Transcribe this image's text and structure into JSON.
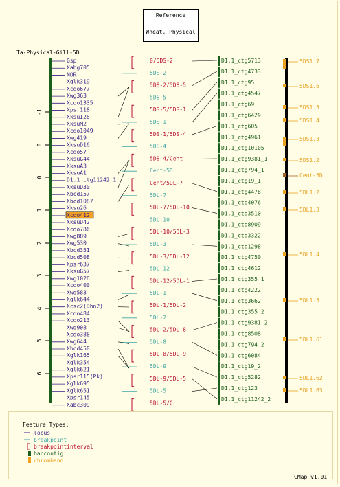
{
  "reference": {
    "line1": "Reference",
    "line2": "Wheat, Physical"
  },
  "map_title": "Ta-Physical-Gill-5D",
  "axis_ticks": [
    "-1",
    "0",
    "0",
    "1",
    "2",
    "3",
    "4",
    "5",
    "6"
  ],
  "loci": [
    "Gsp",
    "Xabg705",
    "NOR",
    "Xglk319",
    "Xcdo677",
    "Xwg363",
    "Xcdo1335",
    "Xpsr118",
    "XksuI26",
    "XksuM2",
    "Xcdo1049",
    "Xwg419",
    "XksuD16",
    "Xcdo57",
    "XksuG44",
    "XksuA3",
    "XksuA1",
    "D1.1_ctg11242_1",
    "XksuD30",
    "Xbcd157",
    "Xbcd1087",
    "Xksu26",
    "Xcdo412",
    "XksuD42",
    "Xcdo786",
    "Xwg889",
    "Xwg530",
    "Xbcd351",
    "Xbcd508",
    "Xpsr637",
    "XksuG57",
    "Xwg1026",
    "Xcdo400",
    "Xwg583",
    "Xglk644",
    "Xcsc2(Dhn2)",
    "Xcdo484",
    "Xcdo213",
    "Xwg908",
    "Xcdo388",
    "Xwg644",
    "Xbcd450",
    "Xglk165",
    "Xglk354",
    "Xglk621",
    "Xpsr115(Pk)",
    "Xglk695",
    "Xglk651",
    "Xpsr145",
    "Xabc309"
  ],
  "highlighted_locus": "Xcdo412",
  "bins": [
    "0/5DS-2",
    "5DS-2",
    "5DS-2/5DS-5",
    "5DS-5",
    "5DS-5/5DS-1",
    "5DS-1",
    "5DS-1/5DS-4",
    "5DS-4",
    "5DS-4/Cent",
    "Cent-5D",
    "Cent/5DL-7",
    "5DL-7",
    "5DL-7/5DL-10",
    "5DL-10",
    "5DL-10/5DL-3",
    "5DL-3",
    "5DL-3/5DL-12",
    "5DL-12",
    "5DL-12/5DL-1",
    "5DL-1",
    "5DL-1/5DL-2",
    "5DL-2",
    "5DL-2/5DL-8",
    "5DL-8",
    "5DL-8/5DL-9",
    "5DL-9",
    "5DL-9/5DL-5",
    "5DL-5",
    "5DL-5/0"
  ],
  "contigs": [
    "D1.1_ctg5713",
    "D1.1_ctg4733",
    "D1.1_ctg95",
    "D1.1_ctg4547",
    "D1.1_ctg69",
    "D1.1_ctg6429",
    "D1.1_ctg605",
    "D1.1_ctg4961",
    "D1.1_ctg10105",
    "D1.1_ctg9381_1",
    "D1.1_ctg794_1",
    "D1.1_ctg19_1",
    "D1.1_ctg4478",
    "D1.1_ctg4076",
    "D1.1_ctg3510",
    "D1.1_ctg8909",
    "D1.1_ctg3322",
    "D1.1_ctg1298",
    "D1.1_ctg4750",
    "D1.1_ctg4612",
    "D1.1_ctg355_1",
    "D1.1_ctg4222",
    "D1.1_ctg3662",
    "D1.1_ctg355_2",
    "D1.1_ctg9381_2",
    "D1.1_ctg8508",
    "D1.1_ctg794_2",
    "D1.1_ctg6084",
    "D1.1_ctg19_2",
    "D1.1_ctg5282",
    "D1.1_ctg123",
    "D1.1_ctg11242_2"
  ],
  "chrombands": [
    "5DS1.7",
    "5DS1.6",
    "5DS1.5",
    "5DS1.4",
    "5DS1.3",
    "5DS1.2",
    "Cent-5D",
    "5DL1.2",
    "5DL1.3",
    "5DL1.4",
    "5DL1.5",
    "5DL1.61",
    "5DL1.62",
    "5DL1.63"
  ],
  "legend": {
    "title": "Feature Types:",
    "items": [
      {
        "label": "locus",
        "color": "#3b1e87"
      },
      {
        "label": "breakpoint",
        "color": "#3fa3a3"
      },
      {
        "label": "breakpointinterval",
        "color": "#b80f2e"
      },
      {
        "label": "baccontig",
        "color": "#1c5e1c"
      },
      {
        "label": "chromband",
        "color": "#f2a020"
      }
    ]
  },
  "colors": {
    "locus": "#3b1e87",
    "breakpoint": "#3fa3a3",
    "interval": "#b80f2e",
    "contig": "#1c5e1c",
    "chromband": "#e8a020",
    "centromere": "#a0642a",
    "backbone": "#1c5e1c",
    "highlight": "#f2a020"
  },
  "footer": "CMap v1.01"
}
